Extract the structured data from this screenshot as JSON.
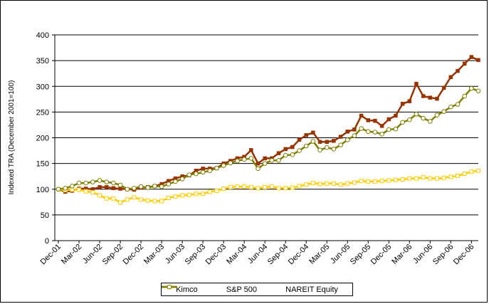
{
  "chart_data": {
    "type": "line",
    "title": "",
    "xlabel": "",
    "ylabel": "Indexed TRA (December 2001=100)",
    "ylim": [
      0,
      400
    ],
    "yticks": [
      0,
      50,
      100,
      150,
      200,
      250,
      300,
      350,
      400
    ],
    "grid": true,
    "legend_position": "bottom",
    "x_tick_labels": [
      {
        "index": 0,
        "label": "Dec-01"
      },
      {
        "index": 3,
        "label": "Mar-02"
      },
      {
        "index": 6,
        "label": "Jun-02"
      },
      {
        "index": 9,
        "label": "Sep-02"
      },
      {
        "index": 12,
        "label": "Dec-02"
      },
      {
        "index": 15,
        "label": "Mar-03"
      },
      {
        "index": 18,
        "label": "Jun-03"
      },
      {
        "index": 21,
        "label": "Sep-03"
      },
      {
        "index": 24,
        "label": "Dec-03"
      },
      {
        "index": 27,
        "label": "Mar-04"
      },
      {
        "index": 30,
        "label": "Jun-04"
      },
      {
        "index": 33,
        "label": "Sep-04"
      },
      {
        "index": 36,
        "label": "Dec-04"
      },
      {
        "index": 39,
        "label": "Mar-05"
      },
      {
        "index": 42,
        "label": "Jun-05"
      },
      {
        "index": 45,
        "label": "Sep-05"
      },
      {
        "index": 48,
        "label": "Dec-05"
      },
      {
        "index": 51,
        "label": "Mar-06"
      },
      {
        "index": 54,
        "label": "Jun-06"
      },
      {
        "index": 57,
        "label": "Sep-06"
      },
      {
        "index": 60,
        "label": "Dec-06"
      }
    ],
    "series": [
      {
        "name": "Kimco",
        "color": "#993300",
        "marker": "square-filled",
        "values": [
          100,
          95,
          97,
          101,
          101,
          100,
          104,
          104,
          102,
          101,
          100,
          99,
          103,
          104,
          106,
          110,
          116,
          121,
          125,
          127,
          136,
          140,
          140,
          141,
          150,
          155,
          160,
          163,
          176,
          150,
          160,
          160,
          170,
          178,
          182,
          196,
          205,
          210,
          192,
          192,
          194,
          202,
          212,
          216,
          243,
          234,
          233,
          223,
          236,
          243,
          266,
          271,
          305,
          281,
          278,
          276,
          297,
          318,
          330,
          344,
          357,
          351
        ]
      },
      {
        "name": "S&P 500",
        "color": "#ffcc00",
        "marker": "square-hollow",
        "values": [
          100,
          98,
          99,
          99,
          96,
          94,
          88,
          82,
          82,
          74,
          80,
          84,
          80,
          78,
          77,
          77,
          83,
          86,
          88,
          89,
          91,
          91,
          95,
          97,
          101,
          104,
          105,
          105,
          104,
          102,
          104,
          105,
          102,
          102,
          103,
          106,
          109,
          112,
          110,
          111,
          111,
          109,
          111,
          113,
          116,
          115,
          115,
          116,
          117,
          118,
          119,
          121,
          121,
          123,
          121,
          121,
          122,
          124,
          126,
          130,
          134,
          136
        ]
      },
      {
        "name": "NAREIT Equity",
        "color": "#808000",
        "marker": "circle-hollow",
        "values": [
          100,
          102,
          106,
          112,
          112,
          114,
          117,
          114,
          112,
          108,
          100,
          102,
          105,
          103,
          106,
          105,
          110,
          115,
          120,
          128,
          130,
          133,
          136,
          141,
          146,
          151,
          155,
          158,
          160,
          140,
          150,
          156,
          156,
          166,
          167,
          175,
          184,
          193,
          176,
          181,
          178,
          186,
          196,
          204,
          218,
          212,
          211,
          207,
          216,
          217,
          230,
          235,
          246,
          238,
          232,
          244,
          251,
          260,
          265,
          281,
          296,
          291
        ]
      }
    ]
  }
}
